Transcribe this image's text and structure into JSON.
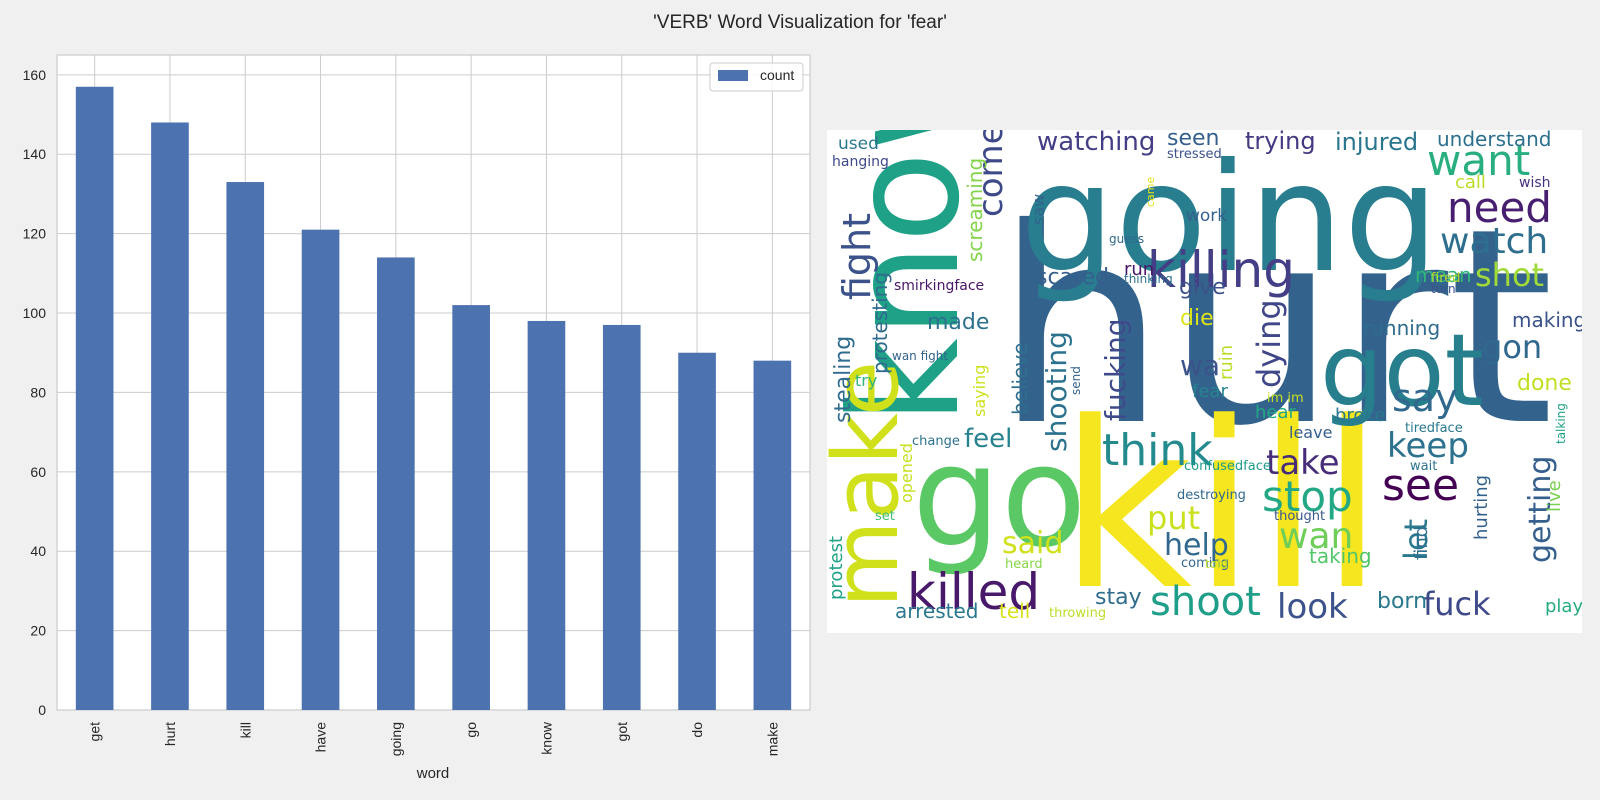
{
  "figure": {
    "title": "'VERB' Word Visualization for 'fear'"
  },
  "chart_data": [
    {
      "type": "bar",
      "xlabel": "word",
      "ylabel": "",
      "ylim": [
        0,
        165
      ],
      "yticks": [
        0,
        20,
        40,
        60,
        80,
        100,
        120,
        140,
        160
      ],
      "grid": true,
      "legend_position": "top-right",
      "bar_color": "#4c72b0",
      "categories": [
        "get",
        "hurt",
        "kill",
        "have",
        "going",
        "go",
        "know",
        "got",
        "do",
        "make"
      ],
      "series": [
        {
          "name": "count",
          "values": [
            157,
            148,
            133,
            121,
            114,
            102,
            98,
            97,
            90,
            88
          ]
        }
      ]
    }
  ],
  "wordcloud": {
    "background": "#ffffff",
    "words": [
      {
        "text": "hurt",
        "color": "#33638d"
      },
      {
        "text": "kill",
        "color": "#f5e61f"
      },
      {
        "text": "going",
        "color": "#287d8e"
      },
      {
        "text": "know",
        "color": "#1fa187"
      },
      {
        "text": "go",
        "color": "#5ac864"
      },
      {
        "text": "got",
        "color": "#277f8e"
      },
      {
        "text": "make",
        "color": "#d0e11c"
      },
      {
        "text": "killed",
        "color": "#48186a"
      },
      {
        "text": "killing",
        "color": "#433e85"
      },
      {
        "text": "want",
        "color": "#29af7f"
      },
      {
        "text": "need",
        "color": "#481f70"
      },
      {
        "text": "watch",
        "color": "#2e6e8e"
      },
      {
        "text": "think",
        "color": "#238a8d"
      },
      {
        "text": "see",
        "color": "#440154"
      },
      {
        "text": "stop",
        "color": "#22a884"
      },
      {
        "text": "shoot",
        "color": "#1f9e89"
      },
      {
        "text": "fight",
        "color": "#3b528b"
      },
      {
        "text": "come",
        "color": "#3e4989"
      },
      {
        "text": "say",
        "color": "#31688e"
      },
      {
        "text": "shot",
        "color": "#a0da39"
      },
      {
        "text": "gon",
        "color": "#31688e"
      },
      {
        "text": "keep",
        "color": "#2c728e"
      },
      {
        "text": "take",
        "color": "#472c7a"
      },
      {
        "text": "wan",
        "color": "#6ece58"
      },
      {
        "text": "look",
        "color": "#3b528b"
      },
      {
        "text": "fuck",
        "color": "#3e4989"
      },
      {
        "text": "put",
        "color": "#cae11f"
      },
      {
        "text": "help",
        "color": "#31688e"
      },
      {
        "text": "said",
        "color": "#d0e11c"
      },
      {
        "text": "let",
        "color": "#2a788e"
      },
      {
        "text": "getting",
        "color": "#355f8d"
      },
      {
        "text": "dying",
        "color": "#3f4788"
      },
      {
        "text": "fucking",
        "color": "#3e4a89"
      },
      {
        "text": "shooting",
        "color": "#2c728e"
      },
      {
        "text": "watching",
        "color": "#433e85"
      },
      {
        "text": "trying",
        "color": "#443983"
      },
      {
        "text": "seen",
        "color": "#355f8d"
      },
      {
        "text": "injured",
        "color": "#2a768e"
      },
      {
        "text": "understand",
        "color": "#2d708e"
      },
      {
        "text": "feel",
        "color": "#26828e"
      },
      {
        "text": "wa",
        "color": "#3b528b"
      },
      {
        "text": "made",
        "color": "#2c728e"
      },
      {
        "text": "stealing",
        "color": "#2f6c8e"
      },
      {
        "text": "protesting",
        "color": "#2f6b8e"
      },
      {
        "text": "screaming",
        "color": "#84d44b"
      },
      {
        "text": "believe",
        "color": "#2e6f8e"
      },
      {
        "text": "running",
        "color": "#2f6c8e"
      },
      {
        "text": "mean",
        "color": "#31b57b"
      },
      {
        "text": "give",
        "color": "#3b528b"
      },
      {
        "text": "scared",
        "color": "#355f8d"
      },
      {
        "text": "making",
        "color": "#3a538b"
      },
      {
        "text": "done",
        "color": "#c2df23"
      },
      {
        "text": "taking",
        "color": "#52c569"
      },
      {
        "text": "born",
        "color": "#2a788e"
      },
      {
        "text": "stay",
        "color": "#2f6c8e"
      },
      {
        "text": "tell",
        "color": "#d8e219"
      },
      {
        "text": "arrested",
        "color": "#2a788e"
      },
      {
        "text": "protest",
        "color": "#20a386"
      },
      {
        "text": "play",
        "color": "#25ab82"
      },
      {
        "text": "live",
        "color": "#7ad151"
      },
      {
        "text": "find",
        "color": "#2d708e"
      },
      {
        "text": "hurting",
        "color": "#33638d"
      },
      {
        "text": "broke",
        "color": "#2a788e"
      },
      {
        "text": "die",
        "color": "#dde318"
      },
      {
        "text": "ruin",
        "color": "#bade28"
      },
      {
        "text": "fear",
        "color": "#25838e"
      },
      {
        "text": "hear",
        "color": "#22a884"
      },
      {
        "text": "leave",
        "color": "#355f8d"
      },
      {
        "text": "opened",
        "color": "#c8e020"
      },
      {
        "text": "saying",
        "color": "#cde11d"
      },
      {
        "text": "run",
        "color": "#481769"
      },
      {
        "text": "work",
        "color": "#355f8d"
      },
      {
        "text": "saw",
        "color": "#33638d"
      },
      {
        "text": "used",
        "color": "#2a788e"
      },
      {
        "text": "hanging",
        "color": "#3e4989"
      },
      {
        "text": "stressed",
        "color": "#3b528b"
      },
      {
        "text": "call",
        "color": "#bade28"
      },
      {
        "text": "wish",
        "color": "#46337e"
      },
      {
        "text": "try",
        "color": "#2fb47c"
      },
      {
        "text": "smirkingface",
        "color": "#481567"
      },
      {
        "text": "wan fight",
        "color": "#33638d"
      },
      {
        "text": "change",
        "color": "#2c728e"
      },
      {
        "text": "set",
        "color": "#3fbc73"
      },
      {
        "text": "heard",
        "color": "#86d549"
      },
      {
        "text": "coming",
        "color": "#32658e"
      },
      {
        "text": "throwing",
        "color": "#bade28"
      },
      {
        "text": "thought",
        "color": "#39568c"
      },
      {
        "text": "told",
        "color": "#bade28"
      },
      {
        "text": "destroying",
        "color": "#31688e"
      },
      {
        "text": "confusedface",
        "color": "#1e9c89"
      },
      {
        "text": "tiredface",
        "color": "#2a788e"
      },
      {
        "text": "wait",
        "color": "#2c728e"
      },
      {
        "text": "talking",
        "color": "#20a386"
      },
      {
        "text": "turn",
        "color": "#3b528b"
      },
      {
        "text": "fired",
        "color": "#b5de2b"
      },
      {
        "text": "guess",
        "color": "#31688e"
      },
      {
        "text": "thinking",
        "color": "#2c728e"
      },
      {
        "text": "send",
        "color": "#33638d"
      },
      {
        "text": "im im",
        "color": "#c8e020"
      },
      {
        "text": "came",
        "color": "#e5e419"
      }
    ]
  }
}
